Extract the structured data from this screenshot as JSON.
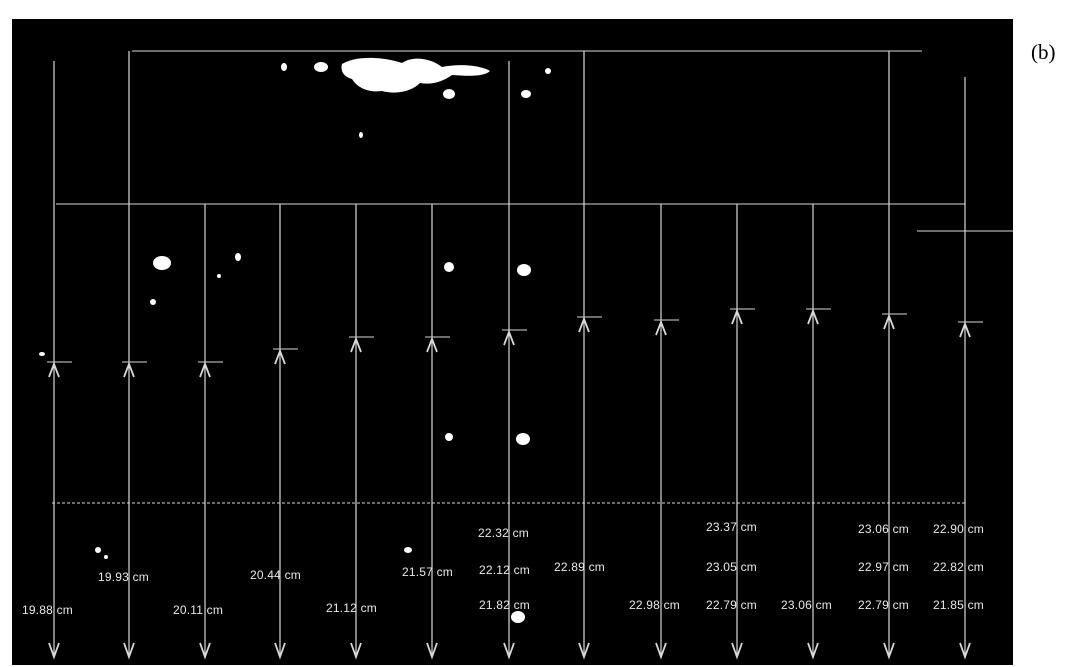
{
  "panel_label": "(b)",
  "colors": {
    "background": "#000000",
    "lines": "#d8d8d8",
    "text": "#e9e9e9",
    "blobs": "#ffffff"
  },
  "measurements": {
    "row1": [
      "22.32 cm",
      "23.37 cm",
      "23.06 cm",
      "22.90 cm"
    ],
    "row2": [
      "19.93 cm",
      "20.44 cm",
      "21.57 cm",
      "22.12 cm",
      "22.89 cm",
      "23.05 cm",
      "22.97 cm",
      "22.82 cm"
    ],
    "row3": [
      "19.88 cm",
      "20.11 cm",
      "21.12 cm",
      "21.82 cm",
      "22.98 cm",
      "22.79 cm",
      "23.06 cm",
      "22.79 cm",
      "21.85 cm"
    ]
  }
}
